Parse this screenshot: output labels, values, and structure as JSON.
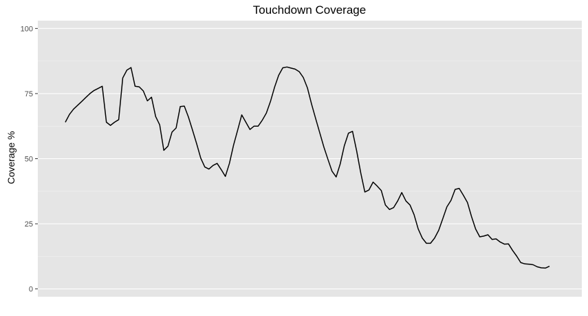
{
  "chart_data": {
    "type": "line",
    "title": "Touchdown Coverage",
    "xlabel": "",
    "ylabel": "Coverage %",
    "ylim": [
      -3,
      103
    ],
    "yticks": [
      0,
      25,
      50,
      75,
      100
    ],
    "ytick_labels": [
      "0",
      "25",
      "50",
      "75",
      "100"
    ],
    "grid": true,
    "show_x_ticks": false,
    "series": [
      {
        "values": [
          64,
          67,
          69,
          70.5,
          72,
          73.5,
          75,
          76.2,
          77,
          77.8,
          64,
          62.8,
          64,
          65,
          81,
          84,
          85,
          77.8,
          77.6,
          76,
          72.2,
          73.6,
          66.2,
          63,
          53.2,
          54.8,
          60.2,
          61.8,
          70,
          70.2,
          66,
          61,
          55.8,
          50.2,
          46.8,
          46,
          47.4,
          48.2,
          45.8,
          43.2,
          48.2,
          55.2,
          61,
          66.8,
          64,
          61.2,
          62.5,
          62.5,
          64.8,
          67.5,
          72,
          77.5,
          82,
          84.9,
          85.2,
          84.8,
          84.4,
          83.4,
          81.2,
          77.2,
          71,
          65.5,
          60,
          54.5,
          49.8,
          45.2,
          43,
          48,
          55,
          59.8,
          60.5,
          53,
          44.5,
          37.2,
          38,
          41,
          39.5,
          37.8,
          32.2,
          30.5,
          31.2,
          33.8,
          37,
          33.8,
          32.2,
          28.5,
          23,
          19.5,
          17.5,
          17.5,
          19.5,
          22.5,
          27,
          31.5,
          34,
          38.2,
          38.6,
          36,
          33.2,
          27.8,
          23,
          20,
          20.3,
          20.8,
          19,
          19.2,
          18,
          17.2,
          17.3,
          14.8,
          12.6,
          10.1,
          9.6,
          9.5,
          9.3,
          8.5,
          8.1,
          8,
          8.7
        ]
      }
    ]
  }
}
